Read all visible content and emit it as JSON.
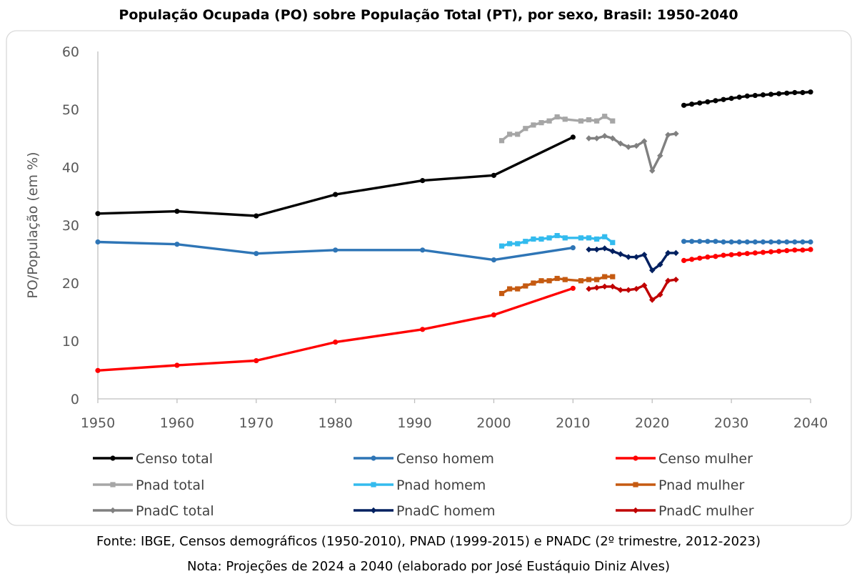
{
  "chart_data": {
    "type": "line",
    "title": "População Ocupada (PO) sobre População Total (PT), por sexo, Brasil: 1950-2040",
    "ylabel": "PO/População (em %)",
    "xlabel": "",
    "xlim": [
      1950,
      2040
    ],
    "ylim": [
      0,
      60
    ],
    "xticks": [
      "1950",
      "1960",
      "1970",
      "1980",
      "1990",
      "2000",
      "2010",
      "2020",
      "2030",
      "2040"
    ],
    "yticks": [
      "0",
      "10",
      "20",
      "30",
      "40",
      "50",
      "60"
    ],
    "grid": false,
    "legend": "bottom",
    "series": [
      {
        "name": "Censo total",
        "color": "#000000",
        "marker": "circle",
        "x": [
          1950,
          1960,
          1970,
          1980,
          1991,
          2000,
          2010
        ],
        "y": [
          32.0,
          32.4,
          31.6,
          35.3,
          37.7,
          38.6,
          45.2
        ]
      },
      {
        "name": "Censo homem",
        "color": "#2E75B6",
        "marker": "circle",
        "x": [
          1950,
          1960,
          1970,
          1980,
          1991,
          2000,
          2010
        ],
        "y": [
          27.1,
          26.7,
          25.1,
          25.7,
          25.7,
          24.0,
          26.1
        ]
      },
      {
        "name": "Censo mulher",
        "color": "#FF0000",
        "marker": "circle",
        "x": [
          1950,
          1960,
          1970,
          1980,
          1991,
          2000,
          2010
        ],
        "y": [
          4.9,
          5.8,
          6.6,
          9.8,
          12.0,
          14.5,
          19.1
        ]
      },
      {
        "name": "Pnad total",
        "color": "#A6A6A6",
        "marker": "square",
        "x": [
          2001,
          2002,
          2003,
          2004,
          2005,
          2006,
          2007,
          2008,
          2009,
          2011,
          2012,
          2013,
          2014,
          2015
        ],
        "y": [
          44.6,
          45.7,
          45.7,
          46.7,
          47.3,
          47.7,
          48.0,
          48.7,
          48.3,
          48.0,
          48.2,
          48.0,
          48.8,
          48.0
        ]
      },
      {
        "name": "Pnad homem",
        "color": "#33BBEE",
        "marker": "square",
        "x": [
          2001,
          2002,
          2003,
          2004,
          2005,
          2006,
          2007,
          2008,
          2009,
          2011,
          2012,
          2013,
          2014,
          2015
        ],
        "y": [
          26.4,
          26.8,
          26.8,
          27.2,
          27.6,
          27.6,
          27.8,
          28.2,
          27.8,
          27.8,
          27.8,
          27.6,
          28.0,
          27.0
        ]
      },
      {
        "name": "Pnad mulher",
        "color": "#C55A11",
        "marker": "square",
        "x": [
          2001,
          2002,
          2003,
          2004,
          2005,
          2006,
          2007,
          2008,
          2009,
          2011,
          2012,
          2013,
          2014,
          2015
        ],
        "y": [
          18.2,
          19.0,
          19.0,
          19.5,
          20.0,
          20.4,
          20.4,
          20.8,
          20.6,
          20.4,
          20.6,
          20.6,
          21.1,
          21.1
        ]
      },
      {
        "name": "PnadC total",
        "color": "#808080",
        "marker": "diamond",
        "x": [
          2012,
          2013,
          2014,
          2015,
          2016,
          2017,
          2018,
          2019,
          2020,
          2021,
          2022,
          2023
        ],
        "y": [
          45.0,
          45.0,
          45.4,
          45.0,
          44.1,
          43.5,
          43.7,
          44.5,
          39.4,
          42.0,
          45.6,
          45.8
        ]
      },
      {
        "name": "PnadC homem",
        "color": "#002060",
        "marker": "diamond",
        "x": [
          2012,
          2013,
          2014,
          2015,
          2016,
          2017,
          2018,
          2019,
          2020,
          2021,
          2022,
          2023
        ],
        "y": [
          25.8,
          25.8,
          26.0,
          25.5,
          25.0,
          24.5,
          24.5,
          24.9,
          22.2,
          23.2,
          25.2,
          25.2
        ]
      },
      {
        "name": "PnadC mulher",
        "color": "#C00000",
        "marker": "diamond",
        "x": [
          2012,
          2013,
          2014,
          2015,
          2016,
          2017,
          2018,
          2019,
          2020,
          2021,
          2022,
          2023
        ],
        "y": [
          19.0,
          19.2,
          19.4,
          19.4,
          18.8,
          18.8,
          19.0,
          19.6,
          17.1,
          18.0,
          20.4,
          20.6
        ]
      }
    ],
    "projections": [
      {
        "color": "#000000",
        "x": [
          2024,
          2025,
          2026,
          2027,
          2028,
          2029,
          2030,
          2031,
          2032,
          2033,
          2034,
          2035,
          2036,
          2037,
          2038,
          2039,
          2040
        ],
        "y": [
          50.7,
          50.9,
          51.1,
          51.3,
          51.5,
          51.7,
          51.9,
          52.1,
          52.3,
          52.4,
          52.5,
          52.6,
          52.7,
          52.8,
          52.9,
          52.9,
          53.0
        ]
      },
      {
        "color": "#2E75B6",
        "x": [
          2024,
          2025,
          2026,
          2027,
          2028,
          2029,
          2030,
          2031,
          2032,
          2033,
          2034,
          2035,
          2036,
          2037,
          2038,
          2039,
          2040
        ],
        "y": [
          27.2,
          27.2,
          27.2,
          27.2,
          27.2,
          27.1,
          27.1,
          27.1,
          27.1,
          27.1,
          27.1,
          27.1,
          27.1,
          27.1,
          27.1,
          27.1,
          27.1
        ]
      },
      {
        "color": "#FF0000",
        "x": [
          2024,
          2025,
          2026,
          2027,
          2028,
          2029,
          2030,
          2031,
          2032,
          2033,
          2034,
          2035,
          2036,
          2037,
          2038,
          2039,
          2040
        ],
        "y": [
          23.9,
          24.1,
          24.3,
          24.5,
          24.6,
          24.8,
          24.9,
          25.0,
          25.1,
          25.2,
          25.3,
          25.4,
          25.5,
          25.6,
          25.7,
          25.7,
          25.8
        ]
      }
    ]
  },
  "footer": {
    "source": "Fonte: IBGE, Censos demográficos (1950-2010), PNAD (1999-2015) e PNADC (2º trimestre, 2012-2023)",
    "note": "Nota: Projeções de 2024 a 2040 (elaborado por José Eustáquio Diniz Alves)"
  }
}
